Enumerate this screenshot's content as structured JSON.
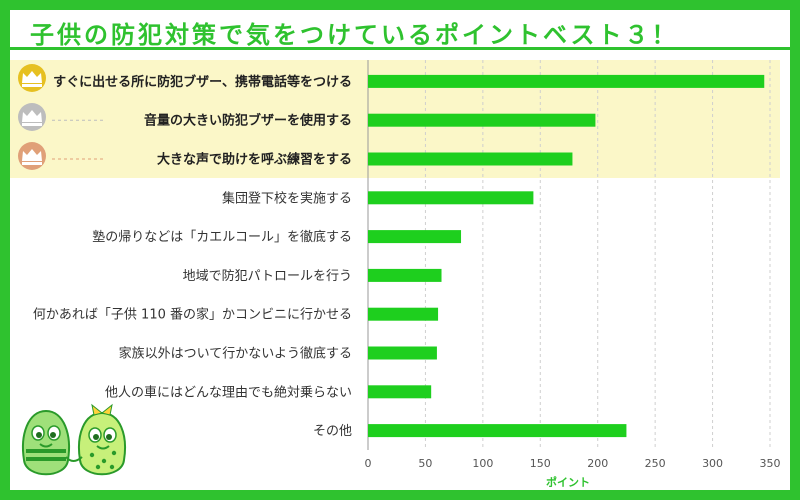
{
  "title": "子供の防犯対策で気をつけているポイントベスト３！",
  "colors": {
    "accent": "#2fc22f",
    "bar": "#1ecf1e",
    "top3_background": "#fbf7c8",
    "crown_gold": "#e6c021",
    "crown_silver": "#bdbdbd",
    "crown_bronze": "#e0a078"
  },
  "chart_data": {
    "type": "bar",
    "orientation": "horizontal",
    "categories": [
      "すぐに出せる所に防犯ブザー、携帯電話等をつける",
      "音量の大きい防犯ブザーを使用する",
      "大きな声で助けを呼ぶ練習をする",
      "集団登下校を実施する",
      "塾の帰りなどは「カエルコール」を徹底する",
      "地域で防犯パトロールを行う",
      "何かあれば「子供 110 番の家」かコンビニに行かせる",
      "家族以外はついて行かないよう徹底する",
      "他人の車にはどんな理由でも絶対乗らない",
      "その他"
    ],
    "values": [
      345,
      198,
      178,
      144,
      81,
      64,
      61,
      60,
      55,
      225
    ],
    "xlabel": "ポイント",
    "xlim": [
      0,
      350
    ],
    "xticks": [
      0,
      50,
      100,
      150,
      200,
      250,
      300,
      350
    ],
    "grid": "vertical-dashed",
    "highlight_top": 3
  },
  "decorations": {
    "crown_icons": [
      "crown-gold-icon",
      "crown-silver-icon",
      "crown-bronze-icon"
    ],
    "mascot": "mascot-illustration"
  }
}
